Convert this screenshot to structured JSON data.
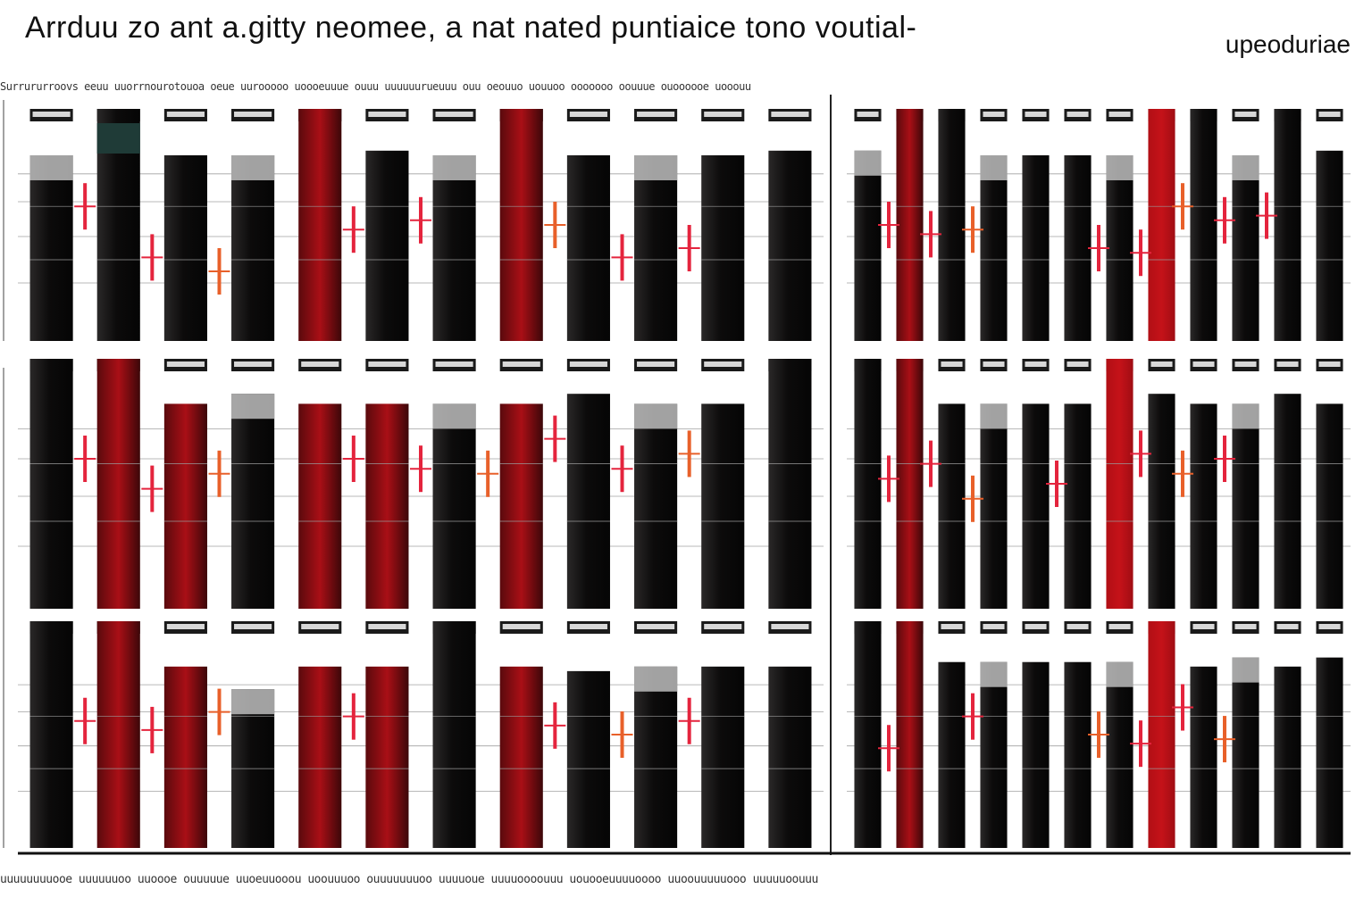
{
  "page": {
    "title": "Arrduu zo ant a.gitty  neomee, a nat nated puntiaice tono voutial-",
    "subtitle": "upeoduriae",
    "top_text": "Surrururroovs eeuu uuorrnourotouoa oeue uurooooo uoooeuuue ouuu uuuuuurueuuu ouu oeouuo uouuoo ooooooo oouuue ouoooooe uooouu",
    "bottom_text": "uuuuuuuuooe uuuuuuoo uuoooe ouuuuue uuoeuuooou uoouuuoo ouuuuuuuoo uuuuoue uuuuoooouuu uouooeuuuuoooo uuoouuuuuooo uuuuuoouuu"
  },
  "colors": {
    "dark": "#0c0b0b",
    "red": "#a90f16",
    "bright_red": "#c51219",
    "marker": "#e4243d",
    "orange": "#e8602a",
    "teal": "#1f3b37",
    "grey": "#bdbdbd"
  },
  "chart_data": {
    "type": "bar",
    "layout": "3 rows x 2 panels, 12 bars per panel",
    "panels": [
      {
        "row": 1,
        "side": "left",
        "values": [
          80,
          100,
          80,
          80,
          100,
          82,
          80,
          100,
          80,
          80,
          80,
          82
        ],
        "colors": [
          "dark",
          "dark",
          "dark",
          "dark",
          "red",
          "dark",
          "dark",
          "red",
          "dark",
          "dark",
          "dark",
          "dark"
        ],
        "markers": [
          [
            1,
            58
          ],
          [
            2,
            36
          ],
          [
            3,
            30
          ],
          [
            5,
            48
          ],
          [
            6,
            52
          ],
          [
            8,
            50
          ],
          [
            9,
            36
          ],
          [
            10,
            40
          ]
        ]
      },
      {
        "row": 1,
        "side": "right",
        "values": [
          82,
          100,
          100,
          80,
          80,
          80,
          80,
          100,
          100,
          80,
          100,
          82
        ],
        "colors": [
          "dark",
          "red",
          "dark",
          "dark",
          "dark",
          "dark",
          "dark",
          "bright_red",
          "dark",
          "dark",
          "dark",
          "dark"
        ],
        "markers": [
          [
            1,
            50
          ],
          [
            2,
            46
          ],
          [
            3,
            48
          ],
          [
            6,
            40
          ],
          [
            7,
            38
          ],
          [
            8,
            58
          ],
          [
            9,
            52
          ],
          [
            10,
            54
          ]
        ]
      },
      {
        "row": 2,
        "side": "left",
        "values": [
          100,
          100,
          82,
          86,
          82,
          82,
          82,
          82,
          86,
          82,
          82,
          100
        ],
        "colors": [
          "dark",
          "red",
          "red",
          "dark",
          "red",
          "red",
          "dark",
          "red",
          "dark",
          "dark",
          "dark",
          "dark"
        ],
        "markers": [
          [
            1,
            60
          ],
          [
            2,
            48
          ],
          [
            3,
            54
          ],
          [
            5,
            60
          ],
          [
            6,
            56
          ],
          [
            7,
            54
          ],
          [
            8,
            68
          ],
          [
            9,
            56
          ],
          [
            10,
            62
          ]
        ]
      },
      {
        "row": 2,
        "side": "right",
        "values": [
          100,
          100,
          82,
          82,
          82,
          82,
          100,
          86,
          82,
          82,
          86,
          82
        ],
        "colors": [
          "dark",
          "red",
          "dark",
          "dark",
          "dark",
          "dark",
          "bright_red",
          "dark",
          "dark",
          "dark",
          "dark",
          "dark"
        ],
        "markers": [
          [
            1,
            52
          ],
          [
            2,
            58
          ],
          [
            3,
            44
          ],
          [
            5,
            50
          ],
          [
            7,
            62
          ],
          [
            8,
            54
          ],
          [
            9,
            60
          ]
        ]
      },
      {
        "row": 3,
        "side": "left",
        "values": [
          100,
          100,
          80,
          70,
          80,
          80,
          100,
          80,
          78,
          80,
          80,
          80
        ],
        "colors": [
          "dark",
          "red",
          "red",
          "dark",
          "red",
          "red",
          "dark",
          "red",
          "dark",
          "dark",
          "dark",
          "dark"
        ],
        "markers": [
          [
            1,
            56
          ],
          [
            2,
            52
          ],
          [
            3,
            60
          ],
          [
            5,
            58
          ],
          [
            8,
            54
          ],
          [
            9,
            50
          ],
          [
            10,
            56
          ]
        ]
      },
      {
        "row": 3,
        "side": "right",
        "values": [
          100,
          100,
          82,
          82,
          82,
          82,
          82,
          100,
          80,
          84,
          80,
          84
        ],
        "colors": [
          "dark",
          "red",
          "dark",
          "dark",
          "dark",
          "dark",
          "dark",
          "bright_red",
          "dark",
          "dark",
          "dark",
          "dark"
        ],
        "markers": [
          [
            1,
            44
          ],
          [
            3,
            58
          ],
          [
            6,
            50
          ],
          [
            7,
            46
          ],
          [
            8,
            62
          ],
          [
            9,
            48
          ]
        ]
      }
    ]
  }
}
